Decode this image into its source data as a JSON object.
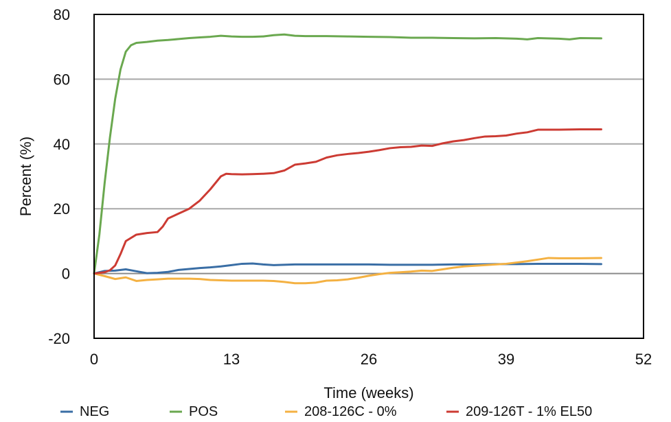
{
  "chart_data": {
    "type": "line",
    "title": "",
    "xlabel": "Time (weeks)",
    "ylabel": "Percent (%)",
    "xlim": [
      0,
      52
    ],
    "ylim": [
      -20,
      80
    ],
    "x_ticks": [
      0,
      13,
      26,
      39,
      52
    ],
    "y_ticks": [
      -20,
      0,
      20,
      40,
      60,
      80
    ],
    "x_tick_labels": [
      "0",
      "13",
      "26",
      "39",
      "52"
    ],
    "y_tick_labels": [
      "-20",
      "0",
      "20",
      "40",
      "60",
      "80"
    ],
    "grid": "horizontal",
    "legend_position": "bottom",
    "series": [
      {
        "name": "NEG",
        "color": "#3a6ea5",
        "points": [
          [
            0,
            0
          ],
          [
            1,
            0.8
          ],
          [
            2,
            0.9
          ],
          [
            3,
            1.3
          ],
          [
            4,
            0.7
          ],
          [
            5,
            0.1
          ],
          [
            6,
            0.2
          ],
          [
            7,
            0.5
          ],
          [
            8,
            1.1
          ],
          [
            9,
            1.4
          ],
          [
            10,
            1.7
          ],
          [
            11,
            1.9
          ],
          [
            12,
            2.2
          ],
          [
            13,
            2.6
          ],
          [
            14,
            3.0
          ],
          [
            15,
            3.1
          ],
          [
            16,
            2.8
          ],
          [
            17,
            2.6
          ],
          [
            18,
            2.7
          ],
          [
            19,
            2.8
          ],
          [
            20,
            2.8
          ],
          [
            21,
            2.8
          ],
          [
            22,
            2.8
          ],
          [
            24,
            2.8
          ],
          [
            26,
            2.8
          ],
          [
            28,
            2.7
          ],
          [
            30,
            2.7
          ],
          [
            32,
            2.7
          ],
          [
            34,
            2.8
          ],
          [
            36,
            2.8
          ],
          [
            38,
            2.9
          ],
          [
            40,
            2.9
          ],
          [
            42,
            3.0
          ],
          [
            44,
            3.0
          ],
          [
            46,
            3.0
          ],
          [
            48,
            2.9
          ]
        ]
      },
      {
        "name": "POS",
        "color": "#6aa84f",
        "points": [
          [
            0,
            0
          ],
          [
            0.5,
            12
          ],
          [
            1,
            28
          ],
          [
            1.5,
            42
          ],
          [
            2,
            54
          ],
          [
            2.5,
            63
          ],
          [
            3,
            68.5
          ],
          [
            3.5,
            70.5
          ],
          [
            4,
            71.2
          ],
          [
            5,
            71.5
          ],
          [
            6,
            71.9
          ],
          [
            7,
            72.1
          ],
          [
            8,
            72.4
          ],
          [
            9,
            72.7
          ],
          [
            10,
            72.9
          ],
          [
            11,
            73.1
          ],
          [
            12,
            73.4
          ],
          [
            13,
            73.2
          ],
          [
            14,
            73.1
          ],
          [
            15,
            73.1
          ],
          [
            16,
            73.2
          ],
          [
            17,
            73.6
          ],
          [
            18,
            73.8
          ],
          [
            19,
            73.4
          ],
          [
            20,
            73.3
          ],
          [
            22,
            73.3
          ],
          [
            24,
            73.2
          ],
          [
            26,
            73.1
          ],
          [
            28,
            73.0
          ],
          [
            30,
            72.8
          ],
          [
            32,
            72.8
          ],
          [
            34,
            72.7
          ],
          [
            36,
            72.6
          ],
          [
            38,
            72.7
          ],
          [
            40,
            72.5
          ],
          [
            41,
            72.3
          ],
          [
            42,
            72.7
          ],
          [
            44,
            72.5
          ],
          [
            45,
            72.3
          ],
          [
            46,
            72.7
          ],
          [
            48,
            72.6
          ]
        ]
      },
      {
        "name": "208-126C - 0%",
        "color": "#f4b142",
        "points": [
          [
            0,
            0
          ],
          [
            1,
            -0.8
          ],
          [
            2,
            -1.7
          ],
          [
            3,
            -1.2
          ],
          [
            4,
            -2.3
          ],
          [
            5,
            -2.0
          ],
          [
            6,
            -1.8
          ],
          [
            7,
            -1.6
          ],
          [
            8,
            -1.6
          ],
          [
            9,
            -1.6
          ],
          [
            10,
            -1.7
          ],
          [
            11,
            -2.0
          ],
          [
            12,
            -2.1
          ],
          [
            13,
            -2.2
          ],
          [
            14,
            -2.2
          ],
          [
            16,
            -2.2
          ],
          [
            17,
            -2.3
          ],
          [
            18,
            -2.6
          ],
          [
            19,
            -3.0
          ],
          [
            20,
            -3.0
          ],
          [
            21,
            -2.8
          ],
          [
            22,
            -2.2
          ],
          [
            23,
            -2.1
          ],
          [
            24,
            -1.8
          ],
          [
            25,
            -1.3
          ],
          [
            26,
            -0.7
          ],
          [
            27,
            -0.2
          ],
          [
            28,
            0.2
          ],
          [
            29,
            0.4
          ],
          [
            30,
            0.6
          ],
          [
            31,
            0.9
          ],
          [
            32,
            0.8
          ],
          [
            33,
            1.3
          ],
          [
            34,
            1.8
          ],
          [
            35,
            2.2
          ],
          [
            36,
            2.4
          ],
          [
            37,
            2.6
          ],
          [
            38,
            2.8
          ],
          [
            39,
            3.0
          ],
          [
            40,
            3.4
          ],
          [
            41,
            3.8
          ],
          [
            42,
            4.3
          ],
          [
            43,
            4.8
          ],
          [
            44,
            4.7
          ],
          [
            46,
            4.7
          ],
          [
            48,
            4.8
          ]
        ]
      },
      {
        "name": "209-126T - 1% EL50",
        "color": "#cc3b33",
        "points": [
          [
            0,
            0
          ],
          [
            1,
            0.4
          ],
          [
            1.5,
            1.0
          ],
          [
            2,
            2.5
          ],
          [
            2.5,
            6.0
          ],
          [
            3,
            10.0
          ],
          [
            4,
            12.0
          ],
          [
            5,
            12.5
          ],
          [
            6,
            12.8
          ],
          [
            6.5,
            14.5
          ],
          [
            7,
            17.0
          ],
          [
            8,
            18.5
          ],
          [
            9,
            20.0
          ],
          [
            10,
            22.5
          ],
          [
            11,
            26.0
          ],
          [
            12,
            30.0
          ],
          [
            12.5,
            30.8
          ],
          [
            13,
            30.7
          ],
          [
            14,
            30.6
          ],
          [
            15,
            30.7
          ],
          [
            16,
            30.8
          ],
          [
            17,
            31.0
          ],
          [
            18,
            31.8
          ],
          [
            19,
            33.6
          ],
          [
            20,
            34.0
          ],
          [
            21,
            34.5
          ],
          [
            22,
            35.8
          ],
          [
            23,
            36.5
          ],
          [
            24,
            36.9
          ],
          [
            25,
            37.2
          ],
          [
            26,
            37.6
          ],
          [
            27,
            38.1
          ],
          [
            28,
            38.7
          ],
          [
            29,
            39.0
          ],
          [
            30,
            39.1
          ],
          [
            31,
            39.5
          ],
          [
            32,
            39.4
          ],
          [
            33,
            40.2
          ],
          [
            34,
            40.8
          ],
          [
            35,
            41.2
          ],
          [
            36,
            41.8
          ],
          [
            37,
            42.3
          ],
          [
            38,
            42.4
          ],
          [
            39,
            42.6
          ],
          [
            40,
            43.2
          ],
          [
            41,
            43.6
          ],
          [
            42,
            44.4
          ],
          [
            43,
            44.4
          ],
          [
            44,
            44.4
          ],
          [
            46,
            44.5
          ],
          [
            48,
            44.5
          ]
        ]
      }
    ]
  }
}
